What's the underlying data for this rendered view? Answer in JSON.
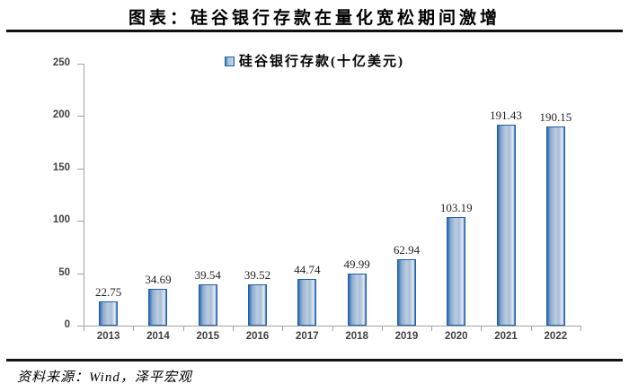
{
  "page": {
    "title": "图表：硅谷银行存款在量化宽松期间激增"
  },
  "legend": {
    "label": "硅谷银行存款(十亿美元)"
  },
  "footer": {
    "text": "资料来源：Wind，泽平宏观"
  },
  "colors": {
    "bar_edge": "#2a69b2",
    "bar_shade": "#8eadd0",
    "bar_light": "#bccde1",
    "bar_mid": "#a9bed7",
    "bar_highlight": "#e7edf5",
    "bar_border": "#2160a8",
    "axis": "#a3a3a3",
    "tick_label": "#404040",
    "value_label": "#1f1f1f",
    "rule": "#111111"
  },
  "chart_data": {
    "type": "bar",
    "title": "图表：硅谷银行存款在量化宽松期间激增",
    "legend": [
      "硅谷银行存款(十亿美元)"
    ],
    "legend_position": "top",
    "categories": [
      "2013",
      "2014",
      "2015",
      "2016",
      "2017",
      "2018",
      "2019",
      "2020",
      "2021",
      "2022"
    ],
    "values": [
      22.75,
      34.69,
      39.54,
      39.52,
      44.74,
      49.99,
      62.94,
      103.19,
      191.43,
      190.15
    ],
    "value_labels": [
      "22.75",
      "34.69",
      "39.54",
      "39.52",
      "44.74",
      "49.99",
      "62.94",
      "103.19",
      "191.43",
      "190.15"
    ],
    "xlabel": "",
    "ylabel": "",
    "ylim": [
      0,
      250
    ],
    "yticks": [
      0,
      50,
      100,
      150,
      200,
      250
    ],
    "grid": false,
    "source": "资料来源：Wind，泽平宏观"
  }
}
